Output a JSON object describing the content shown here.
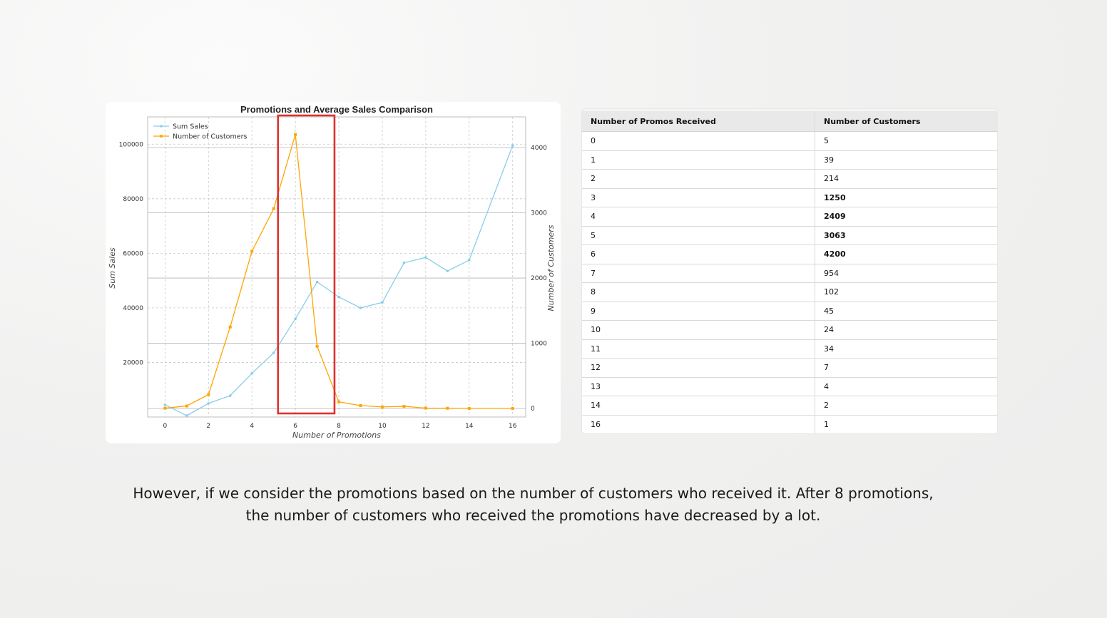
{
  "chart_data": {
    "type": "line",
    "title": "Promotions and Average Sales Comparison",
    "xlabel": "Number of Promotions",
    "ylabel": "Sum Sales",
    "y2label": "Number of Customers",
    "x": [
      0,
      1,
      2,
      3,
      4,
      5,
      6,
      7,
      8,
      9,
      10,
      11,
      12,
      13,
      14,
      16
    ],
    "xticks": [
      0,
      2,
      4,
      6,
      8,
      10,
      12,
      14,
      16
    ],
    "xlim": [
      -0.8,
      16.6
    ],
    "yticks": [
      20000,
      40000,
      60000,
      80000,
      100000
    ],
    "ylim": [
      0,
      110000
    ],
    "y2ticks": [
      0,
      1000,
      2000,
      3000,
      4000
    ],
    "y2lim": [
      -130,
      4470
    ],
    "series": [
      {
        "name": "Sum Sales",
        "axis": "left",
        "color": "#87CEEB",
        "values": [
          4500,
          500,
          5000,
          7800,
          16000,
          23500,
          36000,
          49500,
          44000,
          40000,
          42000,
          56500,
          58500,
          53500,
          57500,
          99500
        ]
      },
      {
        "name": "Number of Customers",
        "axis": "right",
        "color": "#FFA500",
        "values": [
          5,
          39,
          214,
          1250,
          2409,
          3063,
          4200,
          954,
          102,
          45,
          24,
          34,
          7,
          4,
          2,
          1
        ]
      }
    ],
    "legend": "top-left",
    "grid": true,
    "highlight": {
      "x_from": 5.2,
      "x_to": 7.8,
      "color": "#e03030"
    }
  },
  "table": {
    "headers": [
      "Number of Promos Received",
      "Number of Customers"
    ],
    "rows": [
      [
        "0",
        "5"
      ],
      [
        "1",
        "39"
      ],
      [
        "2",
        "214"
      ],
      [
        "3",
        "1250"
      ],
      [
        "4",
        "2409"
      ],
      [
        "5",
        "3063"
      ],
      [
        "6",
        "4200"
      ],
      [
        "7",
        "954"
      ],
      [
        "8",
        "102"
      ],
      [
        "9",
        "45"
      ],
      [
        "10",
        "24"
      ],
      [
        "11",
        "34"
      ],
      [
        "12",
        "7"
      ],
      [
        "13",
        "4"
      ],
      [
        "14",
        "2"
      ],
      [
        "16",
        "1"
      ]
    ],
    "bold_values": [
      "1250",
      "2409",
      "3063",
      "4200"
    ]
  },
  "caption": {
    "line1": "However, if we consider the promotions based on the number of customers who received it. After 8 promotions,",
    "line2": "the number of customers who received the promotions have decreased by a lot."
  }
}
